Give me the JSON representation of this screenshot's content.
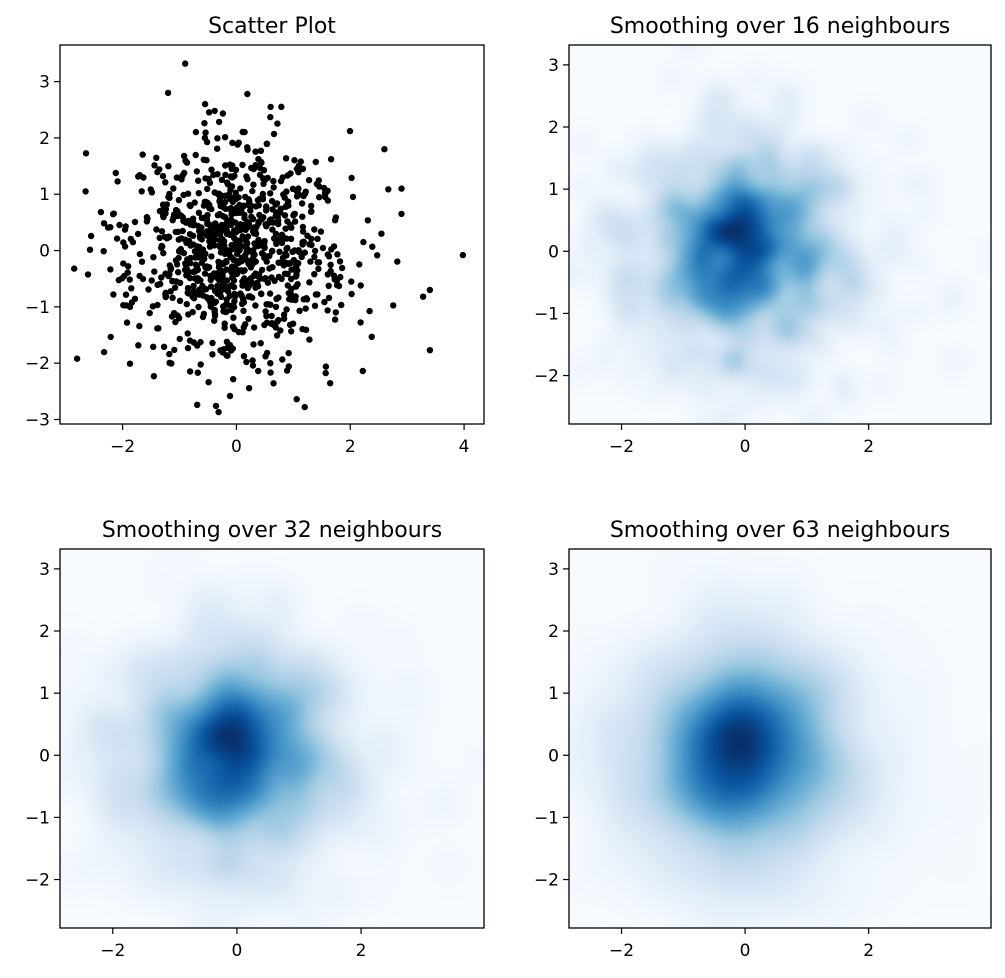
{
  "colors": {
    "marker": "#000000",
    "colormap": "Blues",
    "colormap_low": "#f7fbff",
    "colormap_high": "#08306b"
  },
  "chart_data": [
    {
      "type": "scatter",
      "title": "Scatter Plot",
      "xlabel": "",
      "ylabel": "",
      "xlim": [
        -3.1,
        4.35
      ],
      "ylim": [
        -3.08,
        3.65
      ],
      "xticks": [
        -2,
        0,
        2,
        4
      ],
      "yticks": [
        -3,
        -2,
        -1,
        0,
        1,
        2,
        3
      ],
      "xtick_labels": [
        "−2",
        "0",
        "2",
        "4"
      ],
      "ytick_labels": [
        "−3",
        "−2",
        "−1",
        "0",
        "1",
        "2",
        "3"
      ],
      "grid": false,
      "point_count": 1000,
      "distribution": "standard normal, mean 0, std 1 in x and y",
      "outliers": [
        {
          "x": 3.98,
          "y": -0.08
        },
        {
          "x": 3.4,
          "y": -1.77
        },
        {
          "x": 3.4,
          "y": -0.7
        },
        {
          "x": 3.28,
          "y": -0.82
        },
        {
          "x": -0.9,
          "y": 3.32
        },
        {
          "x": 1.2,
          "y": -2.78
        },
        {
          "x": -2.8,
          "y": -1.92
        },
        {
          "x": -2.85,
          "y": -0.32
        },
        {
          "x": 2.9,
          "y": 1.1
        },
        {
          "x": 2.9,
          "y": 0.65
        },
        {
          "x": 2.6,
          "y": 1.8
        },
        {
          "x": -0.55,
          "y": 2.6
        },
        {
          "x": 0.6,
          "y": 2.55
        },
        {
          "x": -1.2,
          "y": 2.8
        },
        {
          "x": -2.65,
          "y": 1.05
        }
      ]
    },
    {
      "type": "heatmap",
      "title": "Smoothing over 16 neighbours",
      "xlabel": "",
      "ylabel": "",
      "xlim": [
        -2.85,
        3.98
      ],
      "ylim": [
        -2.78,
        3.32
      ],
      "xticks": [
        -2,
        0,
        2
      ],
      "yticks": [
        -2,
        -1,
        0,
        1,
        2,
        3
      ],
      "xtick_labels": [
        "−2",
        "0",
        "2"
      ],
      "ytick_labels": [
        "−2",
        "−1",
        "0",
        "1",
        "2",
        "3"
      ],
      "neighbours": 16,
      "colormap": "Blues",
      "peak_location": {
        "x": -0.45,
        "y": 0.1
      }
    },
    {
      "type": "heatmap",
      "title": "Smoothing over 32 neighbours",
      "xlabel": "",
      "ylabel": "",
      "xlim": [
        -2.85,
        3.98
      ],
      "ylim": [
        -2.78,
        3.32
      ],
      "xticks": [
        -2,
        0,
        2
      ],
      "yticks": [
        -2,
        -1,
        0,
        1,
        2,
        3
      ],
      "xtick_labels": [
        "−2",
        "0",
        "2"
      ],
      "ytick_labels": [
        "−2",
        "−1",
        "0",
        "1",
        "2",
        "3"
      ],
      "neighbours": 32,
      "colormap": "Blues",
      "peak_location": {
        "x": -0.5,
        "y": 0.2
      }
    },
    {
      "type": "heatmap",
      "title": "Smoothing over 63 neighbours",
      "xlabel": "",
      "ylabel": "",
      "xlim": [
        -2.85,
        3.98
      ],
      "ylim": [
        -2.78,
        3.32
      ],
      "xticks": [
        -2,
        0,
        2
      ],
      "yticks": [
        -2,
        -1,
        0,
        1,
        2,
        3
      ],
      "xtick_labels": [
        "−2",
        "0",
        "2"
      ],
      "ytick_labels": [
        "−2",
        "−1",
        "0",
        "1",
        "2",
        "3"
      ],
      "neighbours": 63,
      "colormap": "Blues",
      "peak_location": {
        "x": -0.5,
        "y": 0.1
      }
    }
  ]
}
